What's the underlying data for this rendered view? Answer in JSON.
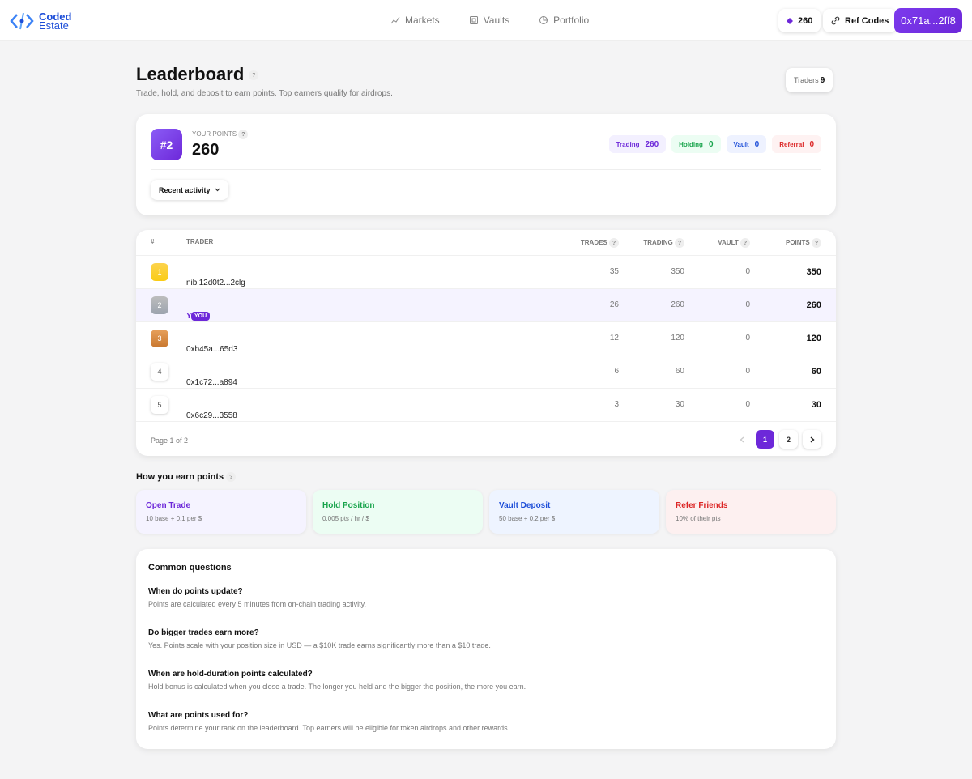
{
  "nav": {
    "brand_top": "Coded",
    "brand_bottom": "Estate",
    "links": [
      "Markets",
      "Vaults",
      "Portfolio"
    ],
    "points_badge": "260",
    "ref_codes": "Ref Codes",
    "wallet": "0x71a...2ff8"
  },
  "help_icon": "?",
  "header": {
    "title": "Leaderboard",
    "subtitle": "Trade, hold, and deposit to earn points. Top earners qualify for airdrops.",
    "traders_label": "Traders",
    "traders_count": "9"
  },
  "points_card": {
    "rank": "#2",
    "label": "YOUR POINTS",
    "value": "260",
    "breakdown": [
      {
        "name": "Trading",
        "value": "260"
      },
      {
        "name": "Holding",
        "value": "0"
      },
      {
        "name": "Vault",
        "value": "0"
      },
      {
        "name": "Referral",
        "value": "0"
      }
    ],
    "activity_button": "Recent activity"
  },
  "table": {
    "columns": [
      "#",
      "TRADER",
      "TRADES",
      "TRADING",
      "VAULT",
      "POINTS"
    ],
    "rows": [
      {
        "rank": 1,
        "trader": "nibi12d0t2...2clg",
        "trades": 35,
        "trading": 350,
        "vault": 0,
        "points": 350
      },
      {
        "rank": 2,
        "trader": "You",
        "tag": "YOU",
        "trades": 26,
        "trading": 260,
        "vault": 0,
        "points": 260
      },
      {
        "rank": 3,
        "trader": "0xb45a...65d3",
        "trades": 12,
        "trading": 120,
        "vault": 0,
        "points": 120
      },
      {
        "rank": 4,
        "trader": "0x1c72...a894",
        "trades": 6,
        "trading": 60,
        "vault": 0,
        "points": 60
      },
      {
        "rank": 5,
        "trader": "0x6c29...3558",
        "trades": 3,
        "trading": 30,
        "vault": 0,
        "points": 30
      }
    ],
    "page_info": "Page 1 of 2",
    "pages": [
      1,
      2
    ],
    "current_page": 1
  },
  "earn": {
    "title": "How you earn points",
    "cards": [
      {
        "title": "Open Trade",
        "desc": "10 base + 0.1 per $"
      },
      {
        "title": "Hold Position",
        "desc": "0.005 pts / hr / $"
      },
      {
        "title": "Vault Deposit",
        "desc": "50 base + 0.2 per $"
      },
      {
        "title": "Refer Friends",
        "desc": "10% of their pts"
      }
    ]
  },
  "faq": {
    "title": "Common questions",
    "items": [
      {
        "q": "When do points update?",
        "a": "Points are calculated every 5 minutes from on-chain trading activity."
      },
      {
        "q": "Do bigger trades earn more?",
        "a": "Yes. Points scale with your position size in USD — a $10K trade earns significantly more than a $10 trade."
      },
      {
        "q": "When are hold-duration points calculated?",
        "a": "Hold bonus is calculated when you close a trade. The longer you held and the bigger the position, the more you earn."
      },
      {
        "q": "What are points used for?",
        "a": "Points determine your rank on the leaderboard. Top earners will be eligible for token airdrops and other rewards."
      }
    ]
  }
}
